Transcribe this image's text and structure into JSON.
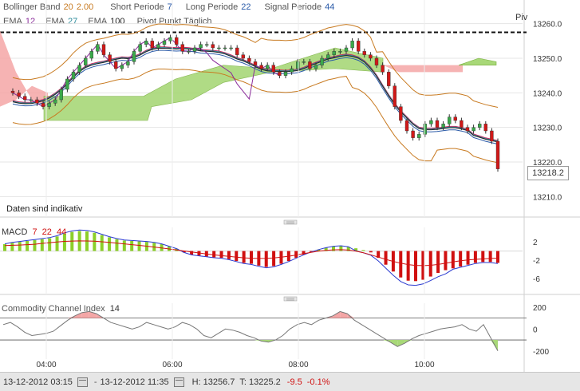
{
  "legend": {
    "bb_label": "Bollinger Band",
    "bb_p1": "20",
    "bb_p2": "2.00",
    "short_label": "Short Periode",
    "short_val": "7",
    "long_label": "Long Periode",
    "long_val": "22",
    "signal_label": "Signal Periode",
    "signal_val": "44",
    "ema1_label": "EMA",
    "ema1_val": "12",
    "ema2_label": "EMA",
    "ema2_val": "27",
    "ema3_label": "EMA",
    "ema3_val": "100",
    "pivot_label": "Pivot Punkt Täglich"
  },
  "pivot_tag": "Piv",
  "disclaimer": "Daten sind indikativ",
  "price_tag": "13218.2",
  "macd": {
    "label": "MACD",
    "p1": "7",
    "p2": "22",
    "p3": "44"
  },
  "cci": {
    "label": "Commodity Channel Index",
    "p": "14"
  },
  "status": {
    "from": "13-12-2012 03:15",
    "to": "13-12-2012 11:35",
    "high": "H: 13256.7",
    "last": "T: 13225.2",
    "chg": "-9.5",
    "pct": "-0.1%"
  },
  "chart_data": [
    {
      "type": "candlestick",
      "title": "",
      "x_ticks": [
        "04:00",
        "06:00",
        "08:00",
        "10:00"
      ],
      "y_ticks": [
        13210.0,
        13220.0,
        13230.0,
        13240.0,
        13250.0,
        13260.0
      ],
      "ylim": [
        13205,
        13265
      ],
      "pivot": 13257.5,
      "last": 13218.2,
      "closes": [
        13240,
        13239,
        13238,
        13238,
        13237,
        13236,
        13237,
        13238,
        13241,
        13244,
        13246,
        13248,
        13250,
        13252,
        13254,
        13251,
        13249,
        13247,
        13248,
        13249,
        13252,
        13254,
        13255,
        13253,
        13254,
        13255,
        13256,
        13254,
        13252,
        13252,
        13253,
        13254,
        13254,
        13253,
        13253,
        13253,
        13253,
        13251,
        13250,
        13249,
        13248,
        13247,
        13248,
        13246,
        13245,
        13246,
        13247,
        13249,
        13249,
        13247,
        13248,
        13250,
        13251,
        13252,
        13252,
        13253,
        13255,
        13252,
        13251,
        13250,
        13248,
        13246,
        13242,
        13236,
        13232,
        13229,
        13227,
        13228,
        13231,
        13232,
        13230,
        13231,
        13233,
        13232,
        13230,
        13229,
        13230,
        13231,
        13229,
        13226,
        13218
      ],
      "series": [
        {
          "name": "EMA 12",
          "color": "#8a2a9a"
        },
        {
          "name": "EMA 27",
          "color": "#2a8a9a"
        },
        {
          "name": "EMA 100",
          "color": "#222222"
        }
      ]
    },
    {
      "type": "bar",
      "title": "MACD",
      "y_ticks": [
        2,
        -2,
        -6
      ],
      "ylim": [
        -9,
        5
      ],
      "values": [
        1.5,
        1.8,
        2.0,
        2.2,
        2.4,
        2.6,
        2.8,
        3.2,
        3.8,
        4.2,
        4.4,
        4.3,
        4.0,
        3.5,
        3.0,
        2.6,
        2.3,
        2.2,
        2.1,
        2.0,
        1.8,
        1.5,
        1.0,
        0.5,
        -0.3,
        -0.8,
        -1.0,
        -1.2,
        -1.4,
        -1.5,
        -1.8,
        -2.2,
        -2.6,
        -2.8,
        -3.2,
        -3.5,
        -3.3,
        -2.8,
        -2.2,
        -1.5,
        -0.8,
        -0.2,
        0.3,
        0.7,
        1.0,
        1.1,
        0.9,
        0.6,
        0.2,
        -0.3,
        -1.5,
        -3.0,
        -4.5,
        -5.8,
        -6.5,
        -6.6,
        -6.3,
        -5.6,
        -4.8,
        -4.2,
        -3.8,
        -3.4,
        -3.0,
        -2.6,
        -2.4,
        -2.4,
        -2.6
      ]
    },
    {
      "type": "area",
      "title": "Commodity Channel Index",
      "y_ticks": [
        200,
        0,
        -200
      ],
      "ylim": [
        -260,
        250
      ],
      "levels": [
        100,
        -100
      ],
      "values": [
        40,
        60,
        20,
        -30,
        -60,
        -50,
        -40,
        -20,
        30,
        80,
        120,
        150,
        160,
        140,
        100,
        60,
        40,
        20,
        0,
        20,
        60,
        40,
        20,
        0,
        20,
        60,
        40,
        0,
        -60,
        -80,
        -40,
        0,
        -10,
        -30,
        -60,
        -80,
        -110,
        -120,
        -100,
        -60,
        0,
        40,
        60,
        40,
        80,
        100,
        120,
        160,
        140,
        80,
        40,
        0,
        -40,
        -80,
        -120,
        -160,
        -130,
        -90,
        -60,
        -40,
        -20,
        0,
        10,
        20,
        40,
        0,
        -20,
        40,
        -80,
        -200
      ]
    }
  ]
}
